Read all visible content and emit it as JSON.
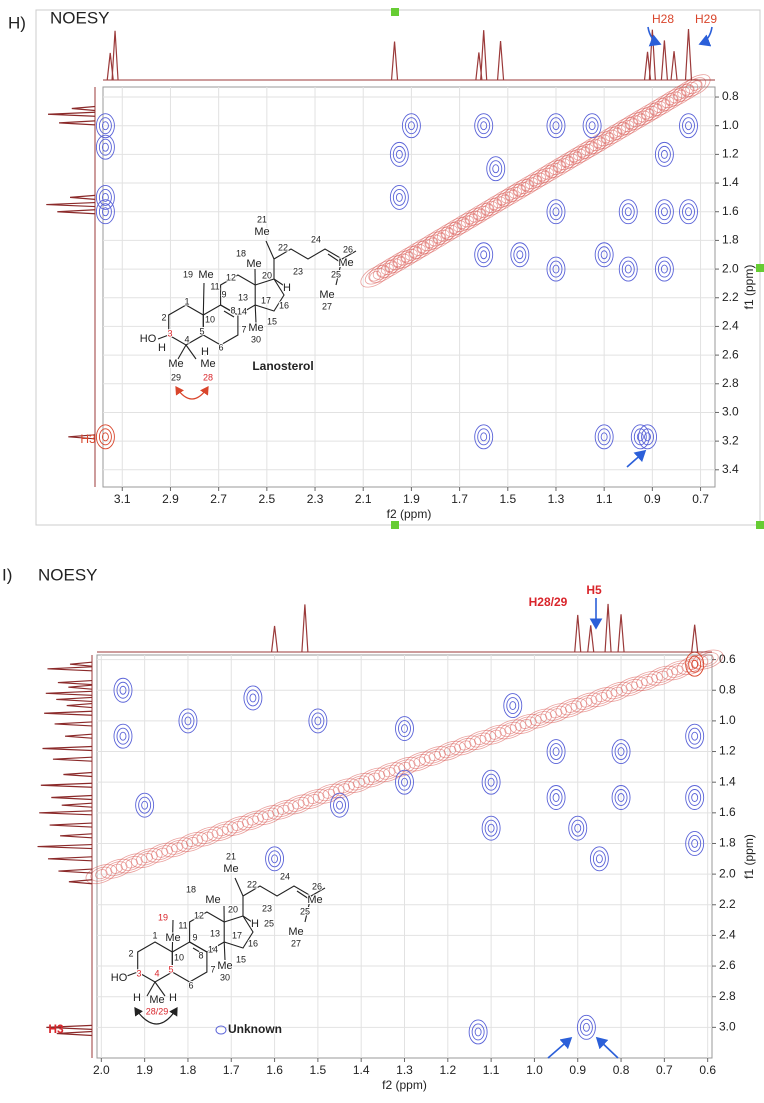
{
  "chart_data": [
    {
      "type": "contour",
      "panel_label": "H)",
      "title": "NOESY",
      "xlabel": "f2 (ppm)",
      "ylabel": "f1 (ppm)",
      "xlim": [
        3.18,
        0.64
      ],
      "ylim": [
        0.73,
        3.52
      ],
      "xticks": [
        3.1,
        2.9,
        2.7,
        2.5,
        2.3,
        2.1,
        1.9,
        1.7,
        1.5,
        1.3,
        1.1,
        0.9,
        0.7
      ],
      "yticks": [
        0.8,
        {
          "value": 1,
          "label": "1.0"
        },
        1.2,
        1.4,
        1.6,
        1.8,
        {
          "value": 2,
          "label": "2.0"
        },
        2.2,
        2.4,
        2.6,
        2.8,
        {
          "value": 3,
          "label": "3.0"
        },
        3.2,
        3.4
      ],
      "grid": true,
      "annotations": [
        "H28",
        "H29",
        "H3"
      ],
      "diagonal": [
        2.05,
        0.72
      ],
      "positive_peaks": {
        "x": [
          3.17
        ],
        "y": [
          3.17
        ]
      },
      "negative_peaks": {
        "x": [
          3.17,
          3.17,
          3.17,
          3.17,
          0.95,
          0.92,
          1.1,
          1.6,
          1.95,
          1.95,
          1.6,
          1.55,
          1.3,
          1.3,
          1.3,
          1.15,
          1.0,
          1.0,
          0.85,
          0.85,
          0.85,
          0.75,
          0.75,
          1.45,
          1.1,
          1.9,
          1.6
        ],
        "y": [
          1.0,
          1.15,
          1.5,
          1.6,
          3.17,
          3.17,
          3.17,
          3.17,
          1.2,
          1.5,
          1.0,
          1.3,
          1.0,
          1.6,
          2.0,
          1.0,
          1.6,
          2.0,
          1.2,
          1.6,
          2.0,
          1.0,
          1.6,
          1.9,
          1.9,
          1.0,
          1.9
        ]
      },
      "top_trace_peaks": [
        3.15,
        3.13,
        1.97,
        1.62,
        1.6,
        1.53,
        0.92,
        0.9,
        0.85,
        0.81,
        0.75
      ],
      "left_trace_peaks": [
        0.88,
        0.92,
        0.98,
        1.5,
        1.55,
        1.6,
        3.17
      ],
      "structure_labels": [
        "21",
        "Me",
        "18",
        "22",
        "24",
        "26",
        "12",
        "Me",
        "20",
        "23",
        "Me",
        "25",
        "Me",
        "27",
        "19",
        "11",
        "Me",
        "1",
        "13",
        "17",
        "H",
        "16",
        "9",
        "14",
        "2",
        "10",
        "8",
        "15",
        "Me",
        "30",
        "7",
        "3",
        "HO",
        "H",
        "4",
        "5",
        "H",
        "6",
        "Me",
        "Me",
        "29",
        "28",
        "Lanosterol"
      ]
    },
    {
      "type": "contour",
      "panel_label": "I)",
      "title": "NOESY",
      "xlabel": "f2 (ppm)",
      "ylabel": "f1 (ppm)",
      "xlim": [
        2.01,
        0.59
      ],
      "ylim": [
        0.57,
        3.2
      ],
      "xticks": [
        {
          "value": 2,
          "label": "2.0"
        },
        1.9,
        1.8,
        1.7,
        1.6,
        1.5,
        1.4,
        1.3,
        1.2,
        1.1,
        {
          "value": 1,
          "label": "1.0"
        },
        0.9,
        0.8,
        0.7,
        0.6
      ],
      "yticks": [
        0.6,
        0.8,
        {
          "value": 1,
          "label": "1.0"
        },
        1.2,
        1.4,
        1.6,
        1.8,
        {
          "value": 2,
          "label": "2.0"
        },
        2.2,
        2.4,
        2.6,
        2.8,
        {
          "value": 3,
          "label": "3.0"
        }
      ],
      "grid": true,
      "annotations": [
        "H28/29",
        "H5",
        "H3",
        "Unknown"
      ],
      "diagonal": [
        2.0,
        0.6
      ],
      "positive_peaks": {
        "x": [
          0.63
        ],
        "y": [
          0.63
        ]
      },
      "negative_peaks": {
        "x": [
          1.95,
          1.95,
          1.9,
          1.8,
          1.65,
          1.5,
          1.45,
          1.3,
          1.3,
          1.1,
          1.1,
          1.05,
          0.95,
          0.95,
          0.9,
          0.85,
          0.8,
          0.8,
          0.63,
          0.63,
          0.63,
          0.88,
          1.13,
          1.6
        ],
        "y": [
          0.8,
          1.1,
          1.55,
          1.0,
          0.85,
          1.0,
          1.55,
          1.05,
          1.4,
          1.4,
          1.7,
          0.9,
          1.2,
          1.5,
          1.7,
          1.9,
          1.2,
          1.5,
          1.1,
          1.5,
          1.8,
          3.0,
          3.03,
          1.9
        ]
      },
      "top_trace_peaks": [
        1.6,
        1.53,
        0.9,
        0.87,
        0.83,
        0.8,
        0.63
      ],
      "left_trace_peaks": [
        0.63,
        0.66,
        0.75,
        0.78,
        0.82,
        0.86,
        0.9,
        0.95,
        1.02,
        1.1,
        1.18,
        1.25,
        1.35,
        1.42,
        1.5,
        1.55,
        1.6,
        1.68,
        1.75,
        1.82,
        1.9,
        1.98,
        2.05,
        3.0,
        3.04
      ],
      "structure_labels": [
        "21",
        "Me",
        "22",
        "24",
        "26",
        "18",
        "Me",
        "12",
        "20",
        "23",
        "Me",
        "25",
        "Me",
        "27",
        "19",
        "11",
        "Me",
        "13",
        "17",
        "H",
        "25",
        "16",
        "1",
        "9",
        "14",
        "2",
        "10",
        "8",
        "15",
        "Me",
        "30",
        "7",
        "3",
        "HO",
        "4",
        "5",
        "H",
        "Me",
        "H",
        "6",
        "28/29",
        "Unknown"
      ]
    }
  ]
}
